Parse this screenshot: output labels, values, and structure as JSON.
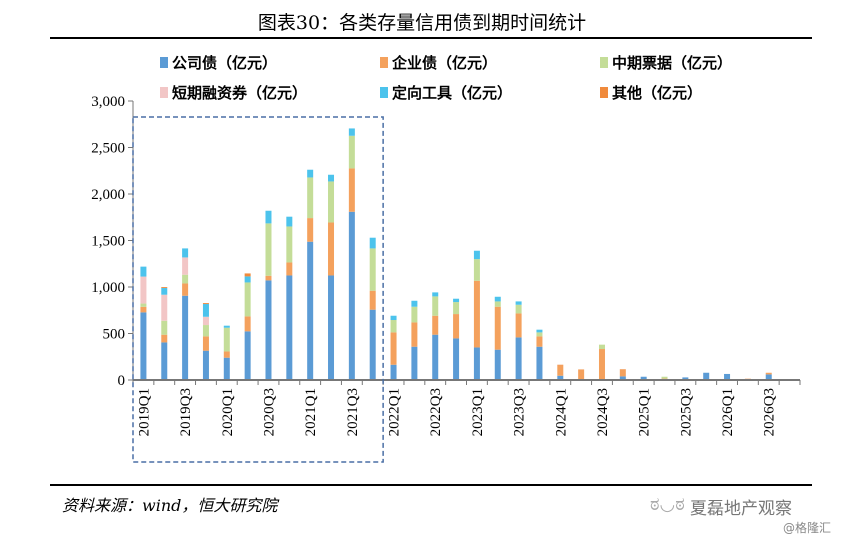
{
  "title": "图表30：各类存量信用债到期时间统计",
  "source": "资料来源：wind，恒大研究院",
  "brand": "夏磊地产观察",
  "watermark": "@格隆汇",
  "chart_data": {
    "type": "bar",
    "stacked": true,
    "title": "图表30：各类存量信用债到期时间统计",
    "ylim": [
      0,
      3000
    ],
    "yticks": [
      "0",
      "500",
      "1,000",
      "1,500",
      "2,000",
      "2,500",
      "3,000"
    ],
    "ytick_values": [
      0,
      500,
      1000,
      1500,
      2000,
      2500,
      3000
    ],
    "grid": false,
    "legend": "top",
    "highlight_box": [
      "2019Q1",
      "2021Q4"
    ],
    "categories": [
      "2019Q1",
      "2019Q2",
      "2019Q3",
      "2019Q4",
      "2020Q1",
      "2020Q2",
      "2020Q3",
      "2020Q4",
      "2021Q1",
      "2021Q2",
      "2021Q3",
      "2021Q4",
      "2022Q1",
      "2022Q2",
      "2022Q3",
      "2022Q4",
      "2023Q1",
      "2023Q2",
      "2023Q3",
      "2023Q4",
      "2024Q1",
      "2024Q2",
      "2024Q3",
      "2024Q4",
      "2025Q1",
      "2025Q2",
      "2025Q3",
      "2025Q4",
      "2026Q1",
      "2026Q2",
      "2026Q3",
      "2026Q4"
    ],
    "xtick_labels": [
      "2019Q1",
      "2019Q3",
      "2020Q1",
      "2020Q3",
      "2021Q1",
      "2021Q3",
      "2022Q1",
      "2022Q3",
      "2023Q1",
      "2023Q3",
      "2024Q1",
      "2024Q3",
      "2025Q1",
      "2025Q3",
      "2026Q1",
      "2026Q3"
    ],
    "series": [
      {
        "name": "公司债（亿元）",
        "color": "#5b9bd5",
        "values": [
          727,
          404,
          906,
          315,
          240,
          523,
          1071,
          1124,
          1487,
          1124,
          1809,
          756,
          164,
          358,
          487,
          447,
          350,
          326,
          458,
          358,
          46,
          0,
          0,
          39,
          35,
          0,
          28,
          78,
          65,
          0,
          60,
          0
        ]
      },
      {
        "name": "企业债（亿元）",
        "color": "#f4a15d",
        "values": [
          60,
          83,
          132,
          154,
          67,
          161,
          50,
          140,
          254,
          570,
          466,
          204,
          348,
          261,
          204,
          262,
          717,
          462,
          258,
          111,
          111,
          114,
          333,
          69,
          0,
          15,
          0,
          0,
          0,
          14,
          18,
          0
        ]
      },
      {
        "name": "中期票据（亿元）",
        "color": "#c4dd98",
        "values": [
          35,
          150,
          94,
          122,
          255,
          365,
          563,
          387,
          437,
          441,
          351,
          455,
          133,
          169,
          208,
          129,
          233,
          57,
          93,
          43,
          0,
          0,
          47,
          0,
          0,
          20,
          0,
          0,
          0,
          0,
          0,
          0
        ]
      },
      {
        "name": "短期融资券（亿元）",
        "color": "#f2c6c6",
        "values": [
          290,
          280,
          186,
          89,
          0,
          0,
          0,
          0,
          0,
          0,
          0,
          0,
          0,
          0,
          0,
          0,
          0,
          0,
          0,
          0,
          0,
          0,
          0,
          0,
          0,
          0,
          0,
          0,
          0,
          0,
          0,
          0
        ]
      },
      {
        "name": "定向工具（亿元）",
        "color": "#4cc3ec",
        "values": [
          107,
          72,
          97,
          137,
          22,
          65,
          136,
          105,
          83,
          72,
          79,
          115,
          46,
          64,
          43,
          36,
          90,
          50,
          36,
          29,
          0,
          0,
          0,
          0,
          0,
          0,
          0,
          0,
          0,
          0,
          0,
          0
        ]
      },
      {
        "name": "其他（亿元）",
        "color": "#f08a3c",
        "values": [
          0,
          10,
          0,
          10,
          0,
          32,
          0,
          0,
          0,
          0,
          0,
          0,
          0,
          0,
          0,
          0,
          0,
          0,
          0,
          0,
          7,
          0,
          0,
          7,
          0,
          0,
          0,
          0,
          0,
          0,
          0,
          0
        ]
      }
    ]
  }
}
